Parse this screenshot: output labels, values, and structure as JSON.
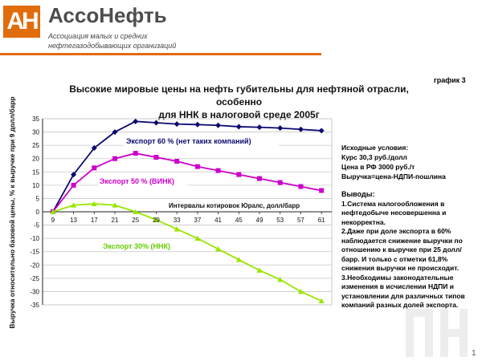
{
  "header": {
    "logo_text": "АН",
    "brand": "АссоНефть",
    "subtitle_lines": [
      "Ассоциация малых и средних",
      "нефтегазодобывающих организаций"
    ],
    "chart_ref": "график 3",
    "slide_number": "1",
    "accent_color": "#e06c0c"
  },
  "title_lines": [
    "Высокие мировые цены на нефть губительны для нефтяной отрасли, особенно",
    "для ННК в налоговой среде 2005г"
  ],
  "conditions": {
    "lines": [
      "Исходные условия:",
      "Курс 30,3 руб./долл",
      "Цена в РФ 3000 руб./т",
      "Выручка=цена-НДПИ-пошлина"
    ]
  },
  "conclusions": {
    "heading": "Выводы:",
    "items": [
      "1.Система налогообложения в нефтедобыче несовершенна и некорректна.",
      "2.Даже при доле экспорта в 60% наблюдается снижение выручки по отношению к выручке при 25 долл/барр. И только с отметки 61,8% снижения выручки не происходит.",
      "3.Необходимы законодательные изменения в исчислении НДПИ и установлении для различных типов компаний разных долей экспорта."
    ]
  },
  "chart_data": {
    "type": "line",
    "title": "Высокие мировые цены на нефть губительны для нефтяной отрасли, особенно для ННК в налоговой среде 2005г",
    "xlabel": "Интервалы котировок Юралс, долл/барр",
    "ylabel": "Выручка относительно базовой цены, % к выручке при 9 долл/барр",
    "categories": [
      "9",
      "13",
      "17",
      "21",
      "25",
      "29",
      "33",
      "37",
      "41",
      "45",
      "49",
      "53",
      "57",
      "61"
    ],
    "ylim": [
      -35,
      35
    ],
    "yticks": [
      35,
      30,
      25,
      20,
      15,
      10,
      5,
      0,
      -5,
      -10,
      -15,
      -20,
      -25,
      -30,
      -35
    ],
    "grid": true,
    "series": [
      {
        "name": "Экспорт 60 % (нет таких компаний)",
        "color": "#0a0a6e",
        "marker": "diamond",
        "values": [
          0,
          14,
          24,
          30,
          34,
          33.5,
          33,
          32.8,
          32.5,
          32,
          31.8,
          31.5,
          31,
          30.5
        ]
      },
      {
        "name": "Экспорт 50 % (ВИНК)",
        "color": "#cc00cc",
        "marker": "square",
        "values": [
          0,
          10,
          16.5,
          20,
          22,
          20.5,
          19,
          17,
          15.5,
          14,
          12.5,
          11,
          9.5,
          8
        ]
      },
      {
        "name": "Экспорт 30% (ННК)",
        "color": "#99e600",
        "marker": "triangle",
        "values": [
          0,
          2.5,
          3,
          2.5,
          0,
          -3,
          -6.5,
          -10,
          -14,
          -18,
          -22,
          -25.5,
          -30,
          -33.5
        ]
      }
    ]
  }
}
